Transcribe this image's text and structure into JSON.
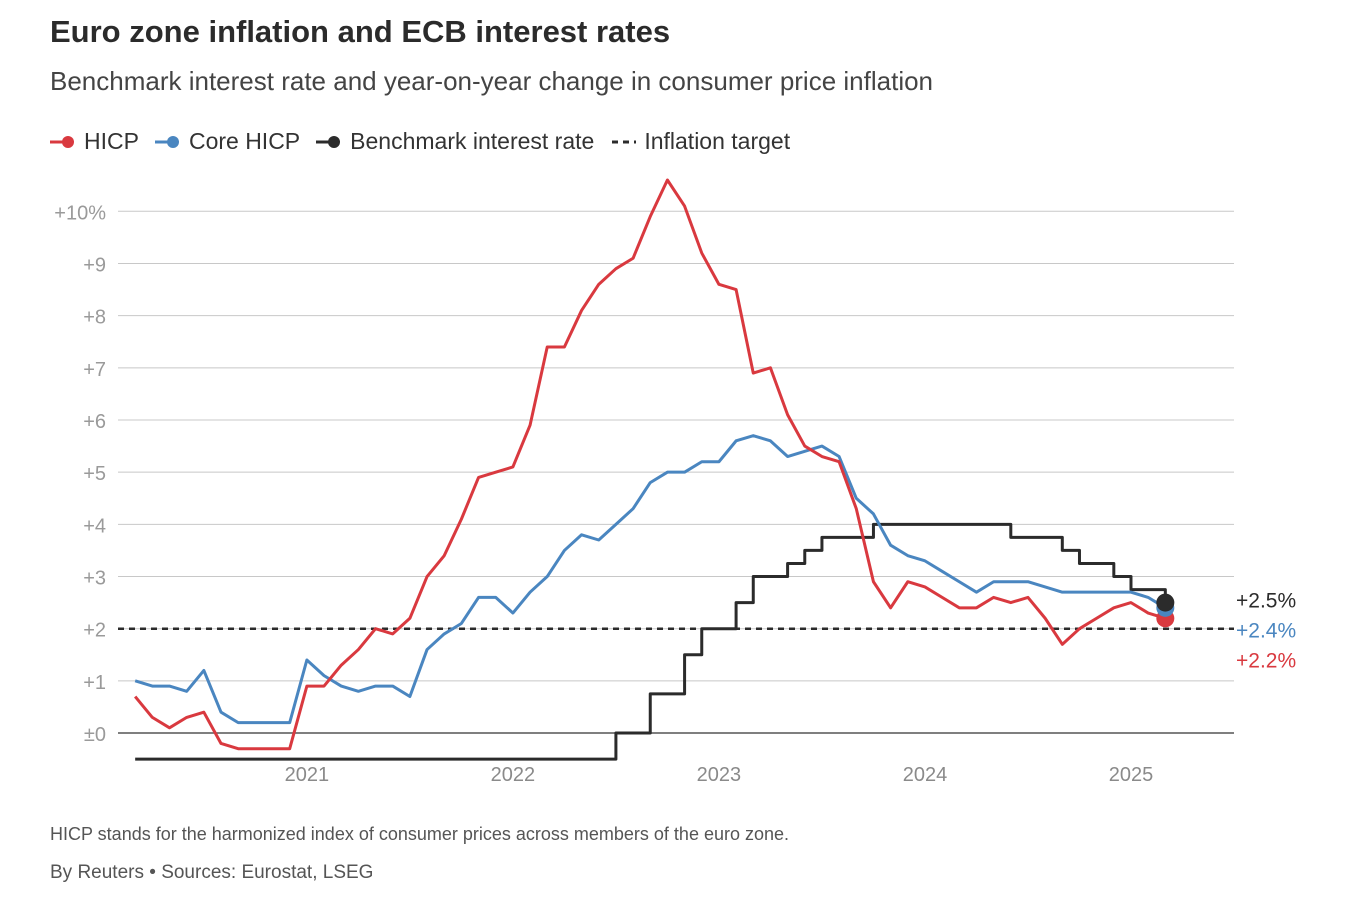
{
  "header": {
    "title": "Euro zone inflation and ECB interest rates",
    "subtitle": "Benchmark interest rate and year-on-year change in consumer price inflation"
  },
  "legend": [
    {
      "label": "HICP",
      "color": "#d9393f",
      "icon": "line-dot-icon"
    },
    {
      "label": "Core HICP",
      "color": "#4a86c0",
      "icon": "line-dot-icon"
    },
    {
      "label": "Benchmark interest rate",
      "color": "#2b2b2b",
      "icon": "line-dot-icon"
    },
    {
      "label": "Inflation target",
      "color": "#2b2b2b",
      "icon": "dashed-line-icon"
    }
  ],
  "footer": {
    "note": "HICP stands for the harmonized index of consumer prices across members of the euro zone.",
    "source": "By Reuters • Sources: Eurostat, LSEG"
  },
  "chart_data": {
    "type": "line",
    "y_ticks": [
      {
        "value": 0,
        "label": "±0"
      },
      {
        "value": 1,
        "label": "+1"
      },
      {
        "value": 2,
        "label": "+2"
      },
      {
        "value": 3,
        "label": "+3"
      },
      {
        "value": 4,
        "label": "+4"
      },
      {
        "value": 5,
        "label": "+5"
      },
      {
        "value": 6,
        "label": "+6"
      },
      {
        "value": 7,
        "label": "+7"
      },
      {
        "value": 8,
        "label": "+8"
      },
      {
        "value": 9,
        "label": "+9"
      },
      {
        "value": 10,
        "label": "+10%"
      }
    ],
    "x_ticks": [
      {
        "value": "2021-01",
        "label": "2021"
      },
      {
        "value": "2022-01",
        "label": "2022"
      },
      {
        "value": "2023-01",
        "label": "2023"
      },
      {
        "value": "2024-01",
        "label": "2024"
      },
      {
        "value": "2025-01",
        "label": "2025"
      }
    ],
    "xlim": [
      "2020-02",
      "2025-07"
    ],
    "ylim": [
      -0.9,
      10.6
    ],
    "grid": true,
    "legend_position": "top-left",
    "target": {
      "name": "Inflation target",
      "value": 2,
      "color": "#2b2b2b",
      "style": "dashed"
    },
    "series": [
      {
        "name": "HICP",
        "color": "#d9393f",
        "end_label": "+2.2%",
        "x": [
          "2020-03",
          "2020-04",
          "2020-05",
          "2020-06",
          "2020-07",
          "2020-08",
          "2020-09",
          "2020-10",
          "2020-11",
          "2020-12",
          "2021-01",
          "2021-02",
          "2021-03",
          "2021-04",
          "2021-05",
          "2021-06",
          "2021-07",
          "2021-08",
          "2021-09",
          "2021-10",
          "2021-11",
          "2021-12",
          "2022-01",
          "2022-02",
          "2022-03",
          "2022-04",
          "2022-05",
          "2022-06",
          "2022-07",
          "2022-08",
          "2022-09",
          "2022-10",
          "2022-11",
          "2022-12",
          "2023-01",
          "2023-02",
          "2023-03",
          "2023-04",
          "2023-05",
          "2023-06",
          "2023-07",
          "2023-08",
          "2023-09",
          "2023-10",
          "2023-11",
          "2023-12",
          "2024-01",
          "2024-02",
          "2024-03",
          "2024-04",
          "2024-05",
          "2024-06",
          "2024-07",
          "2024-08",
          "2024-09",
          "2024-10",
          "2024-11",
          "2024-12",
          "2025-01",
          "2025-02",
          "2025-03"
        ],
        "values": [
          0.7,
          0.3,
          0.1,
          0.3,
          0.4,
          -0.2,
          -0.3,
          -0.3,
          -0.3,
          -0.3,
          0.9,
          0.9,
          1.3,
          1.6,
          2.0,
          1.9,
          2.2,
          3.0,
          3.4,
          4.1,
          4.9,
          5.0,
          5.1,
          5.9,
          7.4,
          7.4,
          8.1,
          8.6,
          8.9,
          9.1,
          9.9,
          10.6,
          10.1,
          9.2,
          8.6,
          8.5,
          6.9,
          7.0,
          6.1,
          5.5,
          5.3,
          5.2,
          4.3,
          2.9,
          2.4,
          2.9,
          2.8,
          2.6,
          2.4,
          2.4,
          2.6,
          2.5,
          2.6,
          2.2,
          1.7,
          2.0,
          2.2,
          2.4,
          2.5,
          2.3,
          2.2
        ]
      },
      {
        "name": "Core HICP",
        "color": "#4a86c0",
        "end_label": "+2.4%",
        "x": [
          "2020-03",
          "2020-04",
          "2020-05",
          "2020-06",
          "2020-07",
          "2020-08",
          "2020-09",
          "2020-10",
          "2020-11",
          "2020-12",
          "2021-01",
          "2021-02",
          "2021-03",
          "2021-04",
          "2021-05",
          "2021-06",
          "2021-07",
          "2021-08",
          "2021-09",
          "2021-10",
          "2021-11",
          "2021-12",
          "2022-01",
          "2022-02",
          "2022-03",
          "2022-04",
          "2022-05",
          "2022-06",
          "2022-07",
          "2022-08",
          "2022-09",
          "2022-10",
          "2022-11",
          "2022-12",
          "2023-01",
          "2023-02",
          "2023-03",
          "2023-04",
          "2023-05",
          "2023-06",
          "2023-07",
          "2023-08",
          "2023-09",
          "2023-10",
          "2023-11",
          "2023-12",
          "2024-01",
          "2024-02",
          "2024-03",
          "2024-04",
          "2024-05",
          "2024-06",
          "2024-07",
          "2024-08",
          "2024-09",
          "2024-10",
          "2024-11",
          "2024-12",
          "2025-01",
          "2025-02",
          "2025-03"
        ],
        "values": [
          1.0,
          0.9,
          0.9,
          0.8,
          1.2,
          0.4,
          0.2,
          0.2,
          0.2,
          0.2,
          1.4,
          1.1,
          0.9,
          0.8,
          0.9,
          0.9,
          0.7,
          1.6,
          1.9,
          2.1,
          2.6,
          2.6,
          2.3,
          2.7,
          3.0,
          3.5,
          3.8,
          3.7,
          4.0,
          4.3,
          4.8,
          5.0,
          5.0,
          5.2,
          5.2,
          5.6,
          5.7,
          5.6,
          5.3,
          5.4,
          5.5,
          5.3,
          4.5,
          4.2,
          3.6,
          3.4,
          3.3,
          3.1,
          2.9,
          2.7,
          2.9,
          2.9,
          2.9,
          2.8,
          2.7,
          2.7,
          2.7,
          2.7,
          2.7,
          2.6,
          2.4
        ]
      },
      {
        "name": "Benchmark interest rate",
        "color": "#2b2b2b",
        "end_label": "+2.5%",
        "step": true,
        "x": [
          "2020-03",
          "2022-07",
          "2022-09",
          "2022-11",
          "2022-12",
          "2023-02",
          "2023-03",
          "2023-05",
          "2023-06",
          "2023-07",
          "2023-08",
          "2023-10",
          "2024-06",
          "2024-09",
          "2024-10",
          "2024-12",
          "2025-01",
          "2025-03"
        ],
        "values": [
          -0.5,
          0.0,
          0.75,
          1.5,
          2.0,
          2.5,
          3.0,
          3.25,
          3.5,
          3.75,
          3.75,
          4.0,
          3.75,
          3.5,
          3.25,
          3.0,
          2.75,
          2.5
        ]
      }
    ]
  }
}
